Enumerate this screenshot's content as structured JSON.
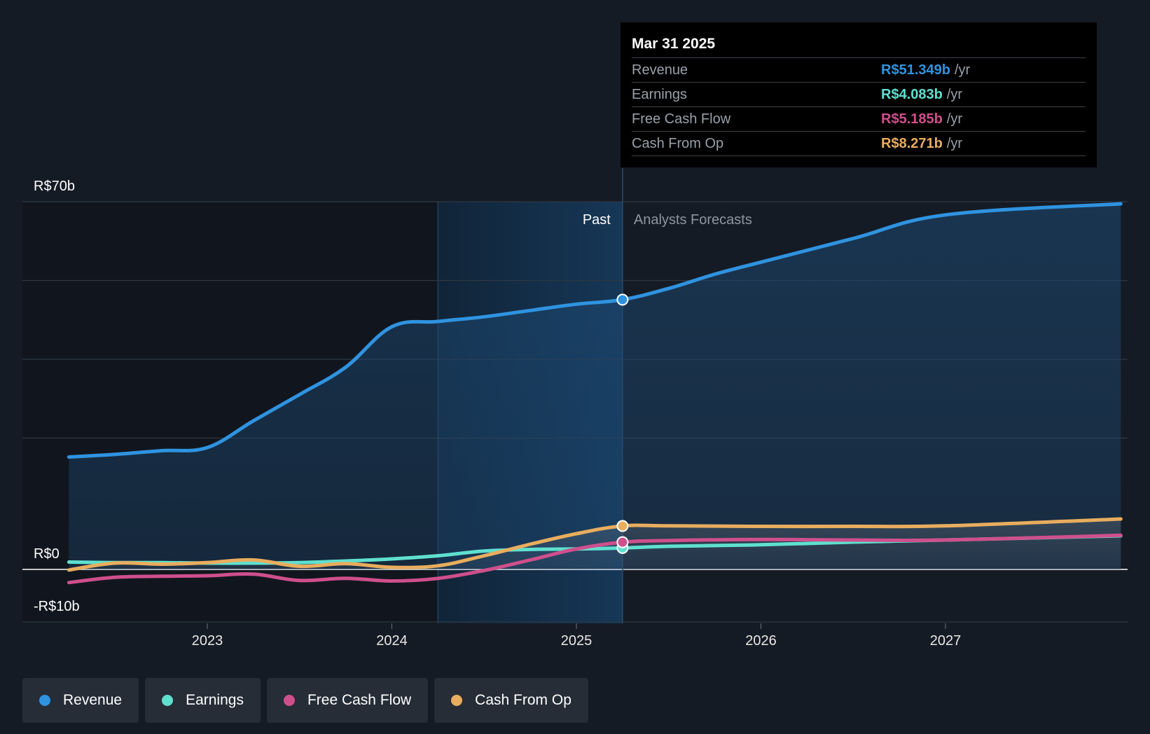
{
  "chart_data": {
    "type": "line",
    "y_axis": {
      "unit_prefix": "R$",
      "ylim": [
        -10,
        70
      ],
      "labeled_ticks": [
        "R$70b",
        "R$0",
        "-R$10b"
      ]
    },
    "x_axis": {
      "tick_labels": [
        "2023",
        "2024",
        "2025",
        "2026",
        "2027"
      ],
      "xlim": [
        2022.25,
        2027.95
      ]
    },
    "regions": {
      "past_label": "Past",
      "forecast_label": "Analysts Forecasts",
      "divider_x": 2025.25,
      "highlight_start_x": 2024.25
    },
    "grid": true,
    "series": [
      {
        "name": "Revenue",
        "color": "#2f93e0",
        "points": [
          [
            2022.25,
            21.4
          ],
          [
            2022.5,
            21.9
          ],
          [
            2022.75,
            22.6
          ],
          [
            2023.0,
            23.2
          ],
          [
            2023.25,
            28.3
          ],
          [
            2023.5,
            33.3
          ],
          [
            2023.75,
            38.5
          ],
          [
            2024.0,
            46.2
          ],
          [
            2024.25,
            47.2
          ],
          [
            2024.5,
            48.1
          ],
          [
            2024.75,
            49.3
          ],
          [
            2025.0,
            50.5
          ],
          [
            2025.25,
            51.349
          ],
          [
            2025.5,
            53.5
          ],
          [
            2025.75,
            56.2
          ],
          [
            2026.0,
            58.5
          ],
          [
            2026.5,
            63.0
          ],
          [
            2027.0,
            67.5
          ],
          [
            2027.95,
            69.6
          ]
        ]
      },
      {
        "name": "Earnings",
        "color": "#5fe0cf",
        "points": [
          [
            2022.25,
            1.4
          ],
          [
            2022.5,
            1.3
          ],
          [
            2022.75,
            1.3
          ],
          [
            2023.0,
            1.2
          ],
          [
            2023.25,
            1.2
          ],
          [
            2023.5,
            1.3
          ],
          [
            2023.75,
            1.6
          ],
          [
            2024.0,
            2.0
          ],
          [
            2024.25,
            2.6
          ],
          [
            2024.5,
            3.5
          ],
          [
            2024.75,
            3.8
          ],
          [
            2025.0,
            3.9
          ],
          [
            2025.25,
            4.083
          ],
          [
            2025.5,
            4.4
          ],
          [
            2026.0,
            4.7
          ],
          [
            2026.5,
            5.2
          ],
          [
            2027.0,
            5.6
          ],
          [
            2027.95,
            6.4
          ]
        ]
      },
      {
        "name": "Free Cash Flow",
        "color": "#cf4f8c",
        "points": [
          [
            2022.25,
            -2.5
          ],
          [
            2022.5,
            -1.5
          ],
          [
            2022.75,
            -1.3
          ],
          [
            2023.0,
            -1.2
          ],
          [
            2023.25,
            -0.9
          ],
          [
            2023.5,
            -2.1
          ],
          [
            2023.75,
            -1.7
          ],
          [
            2024.0,
            -2.2
          ],
          [
            2024.25,
            -1.7
          ],
          [
            2024.5,
            -0.2
          ],
          [
            2024.75,
            1.8
          ],
          [
            2025.0,
            3.9
          ],
          [
            2025.25,
            5.185
          ],
          [
            2025.5,
            5.5
          ],
          [
            2026.0,
            5.7
          ],
          [
            2026.5,
            5.6
          ],
          [
            2027.0,
            5.6
          ],
          [
            2027.95,
            6.5
          ]
        ]
      },
      {
        "name": "Cash From Op",
        "color": "#e8ad5e",
        "points": [
          [
            2022.25,
            -0.1
          ],
          [
            2022.5,
            1.2
          ],
          [
            2022.75,
            1.0
          ],
          [
            2023.0,
            1.3
          ],
          [
            2023.25,
            1.8
          ],
          [
            2023.5,
            0.6
          ],
          [
            2023.75,
            1.1
          ],
          [
            2024.0,
            0.4
          ],
          [
            2024.25,
            0.7
          ],
          [
            2024.5,
            2.6
          ],
          [
            2024.75,
            4.8
          ],
          [
            2025.0,
            6.8
          ],
          [
            2025.25,
            8.271
          ],
          [
            2025.5,
            8.3
          ],
          [
            2026.0,
            8.2
          ],
          [
            2026.5,
            8.2
          ],
          [
            2027.0,
            8.3
          ],
          [
            2027.95,
            9.6
          ]
        ]
      }
    ],
    "highlight_x": 2025.25
  },
  "tooltip": {
    "date": "Mar 31 2025",
    "unit": "/yr",
    "rows": [
      {
        "name": "Revenue",
        "value": "R$51.349b"
      },
      {
        "name": "Earnings",
        "value": "R$4.083b"
      },
      {
        "name": "Free Cash Flow",
        "value": "R$5.185b"
      },
      {
        "name": "Cash From Op",
        "value": "R$8.271b"
      }
    ]
  },
  "legend": [
    "Revenue",
    "Earnings",
    "Free Cash Flow",
    "Cash From Op"
  ],
  "colors": {
    "background": "#151b24",
    "past_shade": "#11161e",
    "forecast_highlight": "#17324d",
    "grid": "#2e3844",
    "zero_line": "#ffffff"
  }
}
